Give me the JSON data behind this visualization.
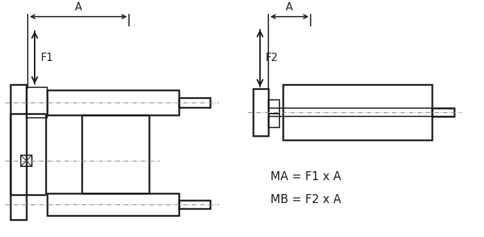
{
  "bg_color": "#ffffff",
  "line_color": "#1a1a1a",
  "dash_color": "#888888",
  "text_color": "#1a1a1a",
  "fig_width": 6.98,
  "fig_height": 3.42,
  "formula1": "MA = F1 x A",
  "formula2": "MB = F2 x A",
  "label_A": "A",
  "label_F1": "F1",
  "label_F2": "F2"
}
